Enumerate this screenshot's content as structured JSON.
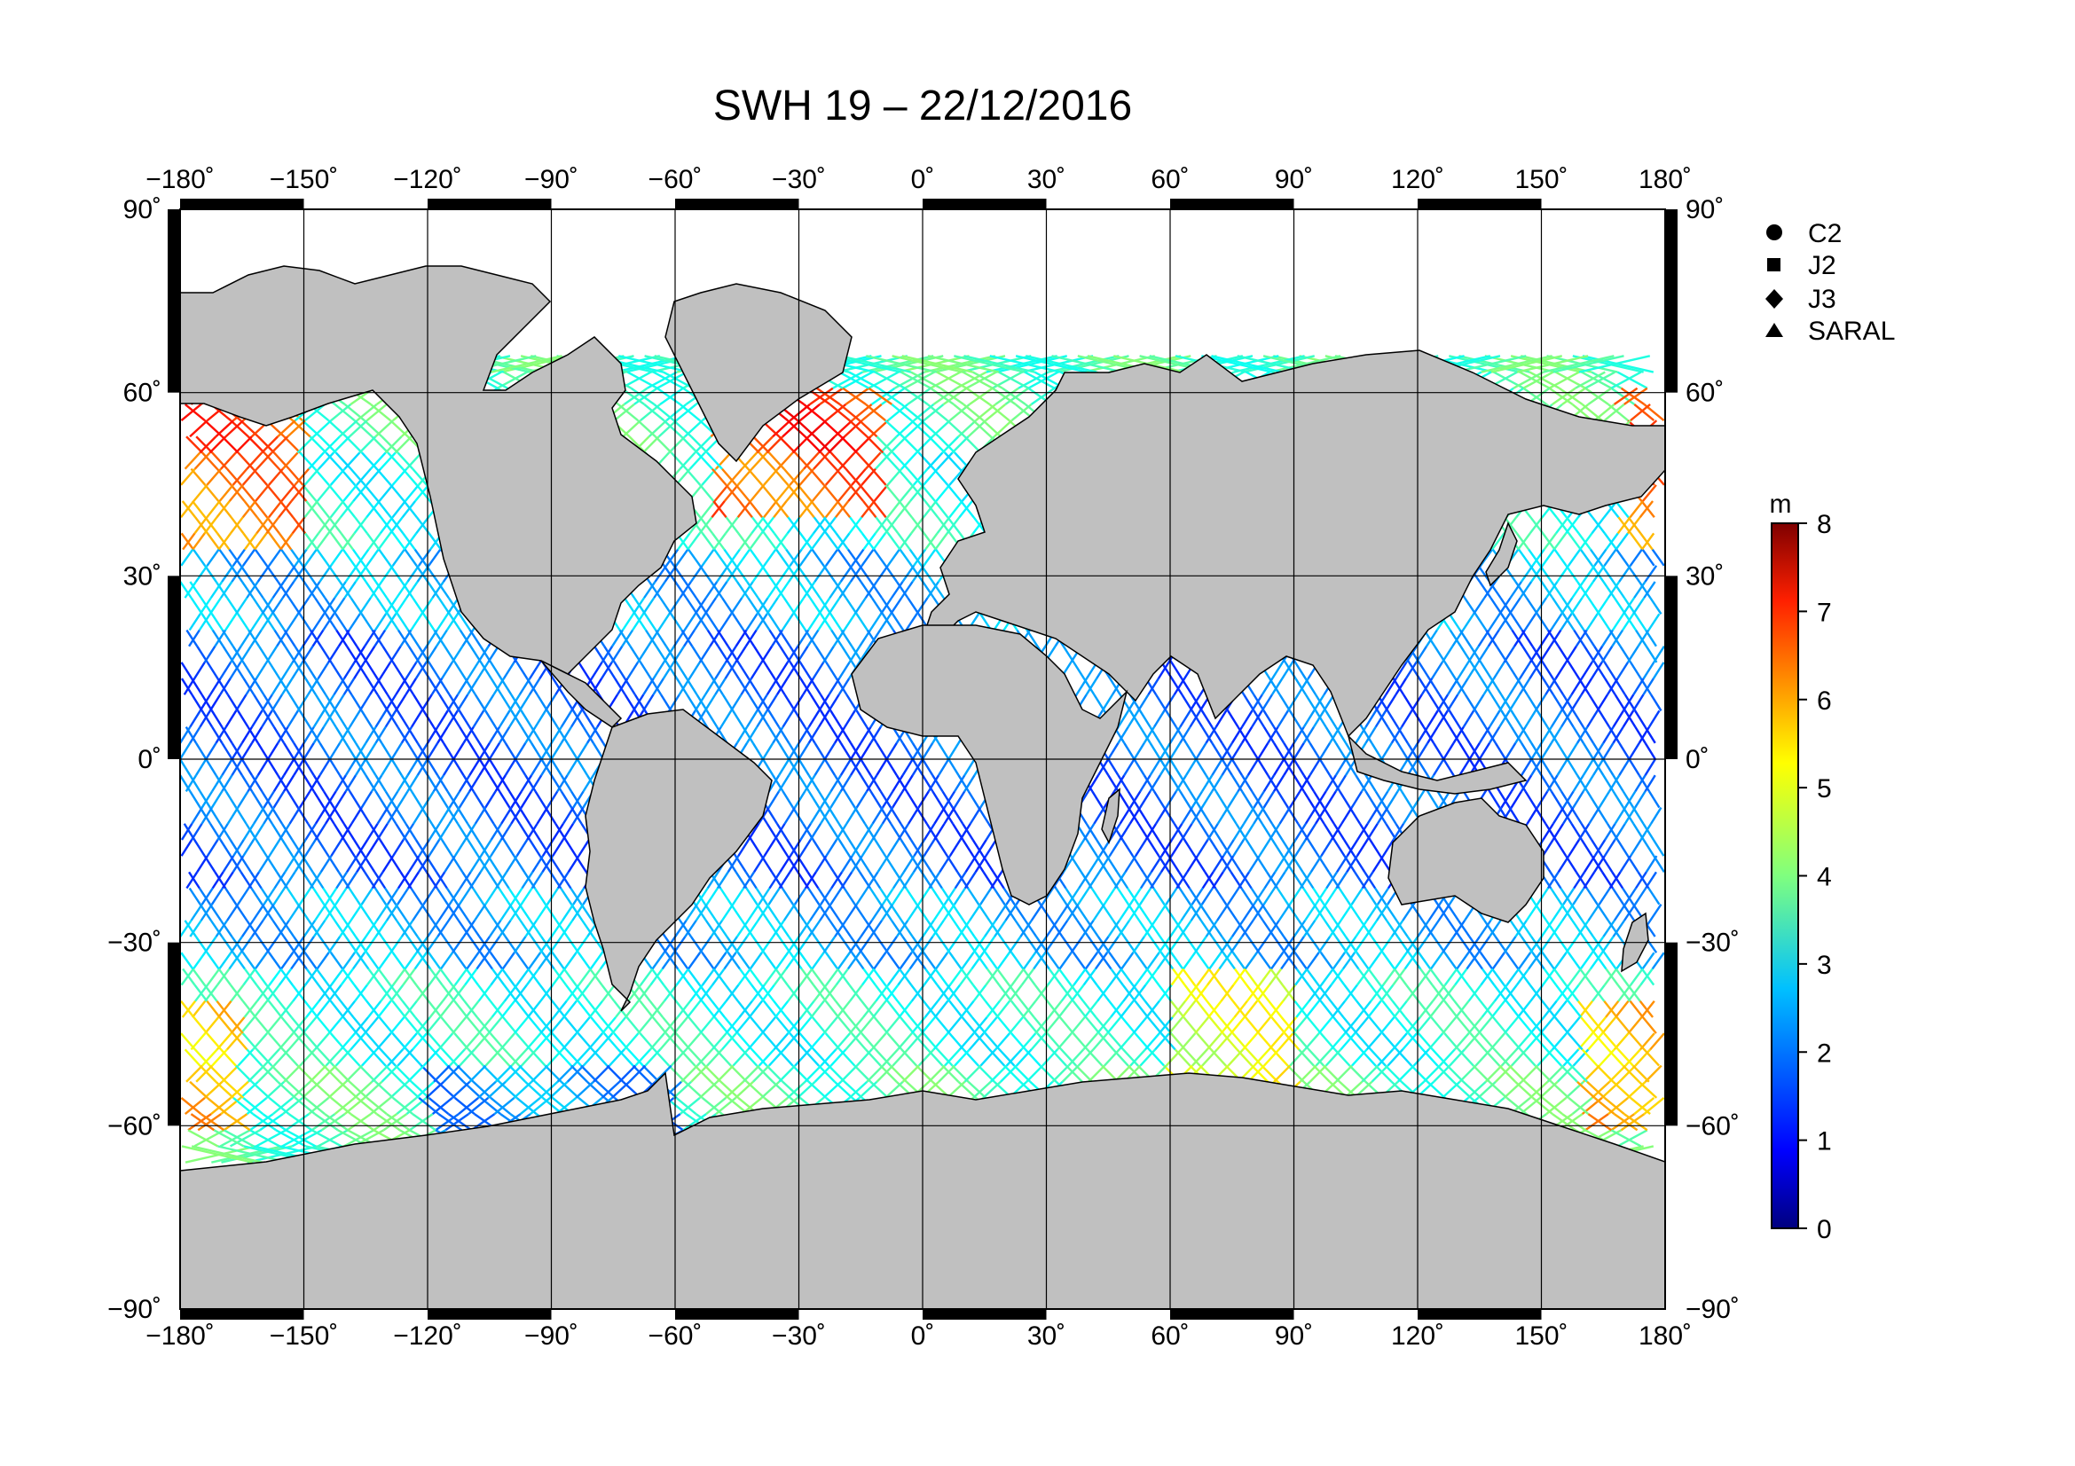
{
  "title": "SWH 19 – 22/12/2016",
  "map": {
    "lon_ticks": [
      "−180˚",
      "−150˚",
      "−120˚",
      "−90˚",
      "−60˚",
      "−30˚",
      "0˚",
      "30˚",
      "60˚",
      "90˚",
      "120˚",
      "150˚",
      "180˚"
    ],
    "lat_ticks": [
      "90˚",
      "60˚",
      "30˚",
      "0˚",
      "−30˚",
      "−60˚",
      "−90˚"
    ],
    "lon_range": [
      -180,
      180
    ],
    "lat_range": [
      -90,
      90
    ],
    "grid": true,
    "land_color": "#c0c0c0",
    "ocean_color": "#ffffff"
  },
  "legend": {
    "placement": "top-right",
    "items": [
      {
        "symbol": "circle",
        "label": "C2"
      },
      {
        "symbol": "square",
        "label": "J2"
      },
      {
        "symbol": "diamond",
        "label": "J3"
      },
      {
        "symbol": "triangle",
        "label": "SARAL"
      }
    ]
  },
  "colorbar": {
    "unit": "m",
    "min": 0,
    "max": 8,
    "ticks": [
      "8",
      "7",
      "6",
      "5",
      "4",
      "3",
      "2",
      "1",
      "0"
    ],
    "colormap": "jet"
  }
}
